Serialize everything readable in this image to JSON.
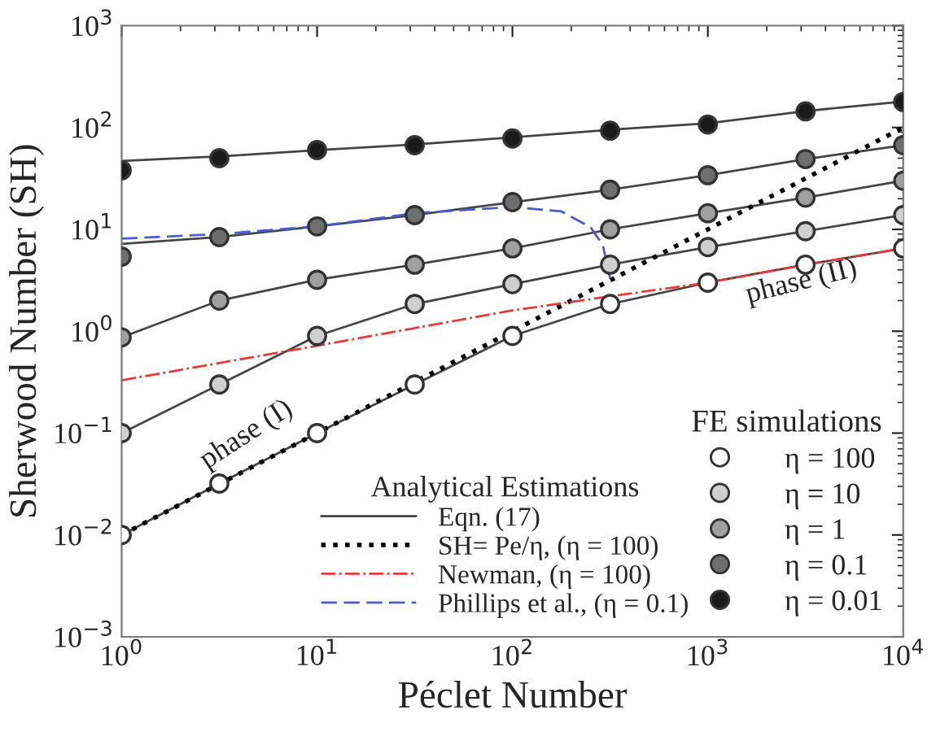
{
  "chart_data": {
    "type": "scatter",
    "xlabel": "Péclet Number",
    "ylabel": "Sherwood Number (SH)",
    "legend_title": [
      "Analytical Estimations",
      "FE simulations"
    ],
    "log": "xy",
    "grid": false,
    "legend": "bottom right",
    "xlim": [
      1,
      10000
    ],
    "ylim": [
      0.001,
      1000
    ],
    "xticks": [
      {
        "value": 1,
        "label": "10$^{0}$"
      },
      {
        "value": 10,
        "label": "10$^{1}$"
      },
      {
        "value": 100,
        "label": "10$^{2}$"
      },
      {
        "value": 1000,
        "label": "10$^{3}$"
      },
      {
        "value": 10000,
        "label": "10$^{4}$"
      }
    ],
    "yticks": [
      {
        "value": 0.001,
        "label": "10$^{−3}$"
      },
      {
        "value": 0.01,
        "label": "10$^{−2}$"
      },
      {
        "value": 0.1,
        "label": "10$^{−1}$"
      },
      {
        "value": 1,
        "label": "10$^{0}$"
      },
      {
        "value": 10,
        "label": "10$^{1}$"
      },
      {
        "value": 100,
        "label": "10$^{2}$"
      },
      {
        "value": 1000,
        "label": "10$^{3}$"
      }
    ],
    "annotations": [
      "phase (I)",
      "phase (II)"
    ],
    "series": [
      {
        "type": "line",
        "name": "Eqn. (17)",
        "color": "#444444",
        "line_style": "solid",
        "x": [
          1,
          3.16,
          10,
          31.6,
          100,
          316,
          1000,
          3162,
          10000
        ],
        "values": [
          47,
          52,
          60,
          68,
          80,
          95,
          110,
          145,
          180
        ]
      },
      {
        "type": "line",
        "color": "#444444",
        "line_style": "solid",
        "x": [
          1,
          3.16,
          10,
          31.6,
          100,
          316,
          1000,
          3162,
          10000
        ],
        "values": [
          7.2,
          8.4,
          10.7,
          13.8,
          18.5,
          24.5,
          34,
          49,
          67
        ]
      },
      {
        "type": "line",
        "color": "#444444",
        "line_style": "solid",
        "x": [
          1,
          3.16,
          10,
          31.6,
          100,
          316,
          1000,
          3162,
          10000
        ],
        "values": [
          0.87,
          2.0,
          3.2,
          4.5,
          6.5,
          10,
          14.4,
          20.5,
          30
        ]
      },
      {
        "type": "line",
        "color": "#444444",
        "line_style": "solid",
        "x": [
          1,
          3.16,
          10,
          31.6,
          100,
          316,
          1000,
          3162,
          10000
        ],
        "values": [
          0.1,
          0.3,
          0.9,
          1.85,
          2.9,
          4.5,
          6.7,
          9.6,
          13.8
        ]
      },
      {
        "type": "line",
        "color": "#444444",
        "line_style": "solid",
        "x": [
          1,
          3.16,
          10,
          31.6,
          100,
          316,
          1000,
          3162,
          10000
        ],
        "values": [
          0.01,
          0.032,
          0.1,
          0.3,
          0.9,
          1.85,
          3.0,
          4.5,
          6.5
        ]
      },
      {
        "type": "line",
        "name": "SH= Pe/η, (η = 100)",
        "color": "#000000",
        "line_style": "dotted",
        "x": [
          1,
          10000
        ],
        "values": [
          0.01,
          100
        ]
      },
      {
        "type": "line",
        "name": "Newman, (η = 100)",
        "color": "#e83a3a",
        "line_style": "dashdot",
        "x": [
          1,
          10,
          100,
          316,
          1000,
          3162,
          10000
        ],
        "values": [
          0.33,
          0.72,
          1.6,
          2.2,
          3.0,
          4.5,
          6.5
        ]
      },
      {
        "type": "line",
        "name": "Phillips et al., (η = 0.1)",
        "color": "#4a5bd6",
        "line_style": "dashed",
        "x": [
          1,
          3.16,
          10,
          31.6,
          100,
          178,
          251,
          290,
          316
        ],
        "values": [
          8.1,
          9.0,
          10.7,
          14.4,
          16.6,
          15,
          10.5,
          7,
          3.3
        ]
      },
      {
        "marker": "circle",
        "name": "η = 100",
        "color": "#ffffff",
        "x": [
          1,
          3.16,
          10,
          31.6,
          100,
          316,
          1000,
          3162,
          10000
        ],
        "values": [
          0.01,
          0.032,
          0.1,
          0.3,
          0.9,
          1.85,
          3.0,
          4.5,
          6.5
        ]
      },
      {
        "marker": "circle",
        "name": "η = 10",
        "color": "#cfcfcf",
        "x": [
          1,
          3.16,
          10,
          31.6,
          100,
          316,
          1000,
          3162,
          10000
        ],
        "values": [
          0.1,
          0.3,
          0.9,
          1.85,
          2.9,
          4.5,
          6.7,
          9.6,
          13.8
        ]
      },
      {
        "marker": "circle",
        "name": "η = 1",
        "color": "#a0a0a0",
        "x": [
          1,
          3.16,
          10,
          31.6,
          100,
          316,
          1000,
          3162,
          10000
        ],
        "values": [
          0.87,
          2.0,
          3.2,
          4.5,
          6.5,
          10,
          14.4,
          20.5,
          30
        ]
      },
      {
        "marker": "circle",
        "name": "η = 0.1",
        "color": "#6e6e6e",
        "x": [
          1,
          3.16,
          10,
          31.6,
          100,
          316,
          1000,
          3162,
          10000
        ],
        "values": [
          5.4,
          8.4,
          10.7,
          13.8,
          18.5,
          24.5,
          34,
          49,
          67
        ]
      },
      {
        "marker": "circle",
        "name": "η = 0.01",
        "color": "#1a1a1a",
        "x": [
          1,
          3.16,
          10,
          31.6,
          100,
          316,
          1000,
          3162,
          10000
        ],
        "values": [
          38,
          50,
          60,
          67,
          78,
          93,
          107,
          144,
          178
        ]
      }
    ]
  }
}
